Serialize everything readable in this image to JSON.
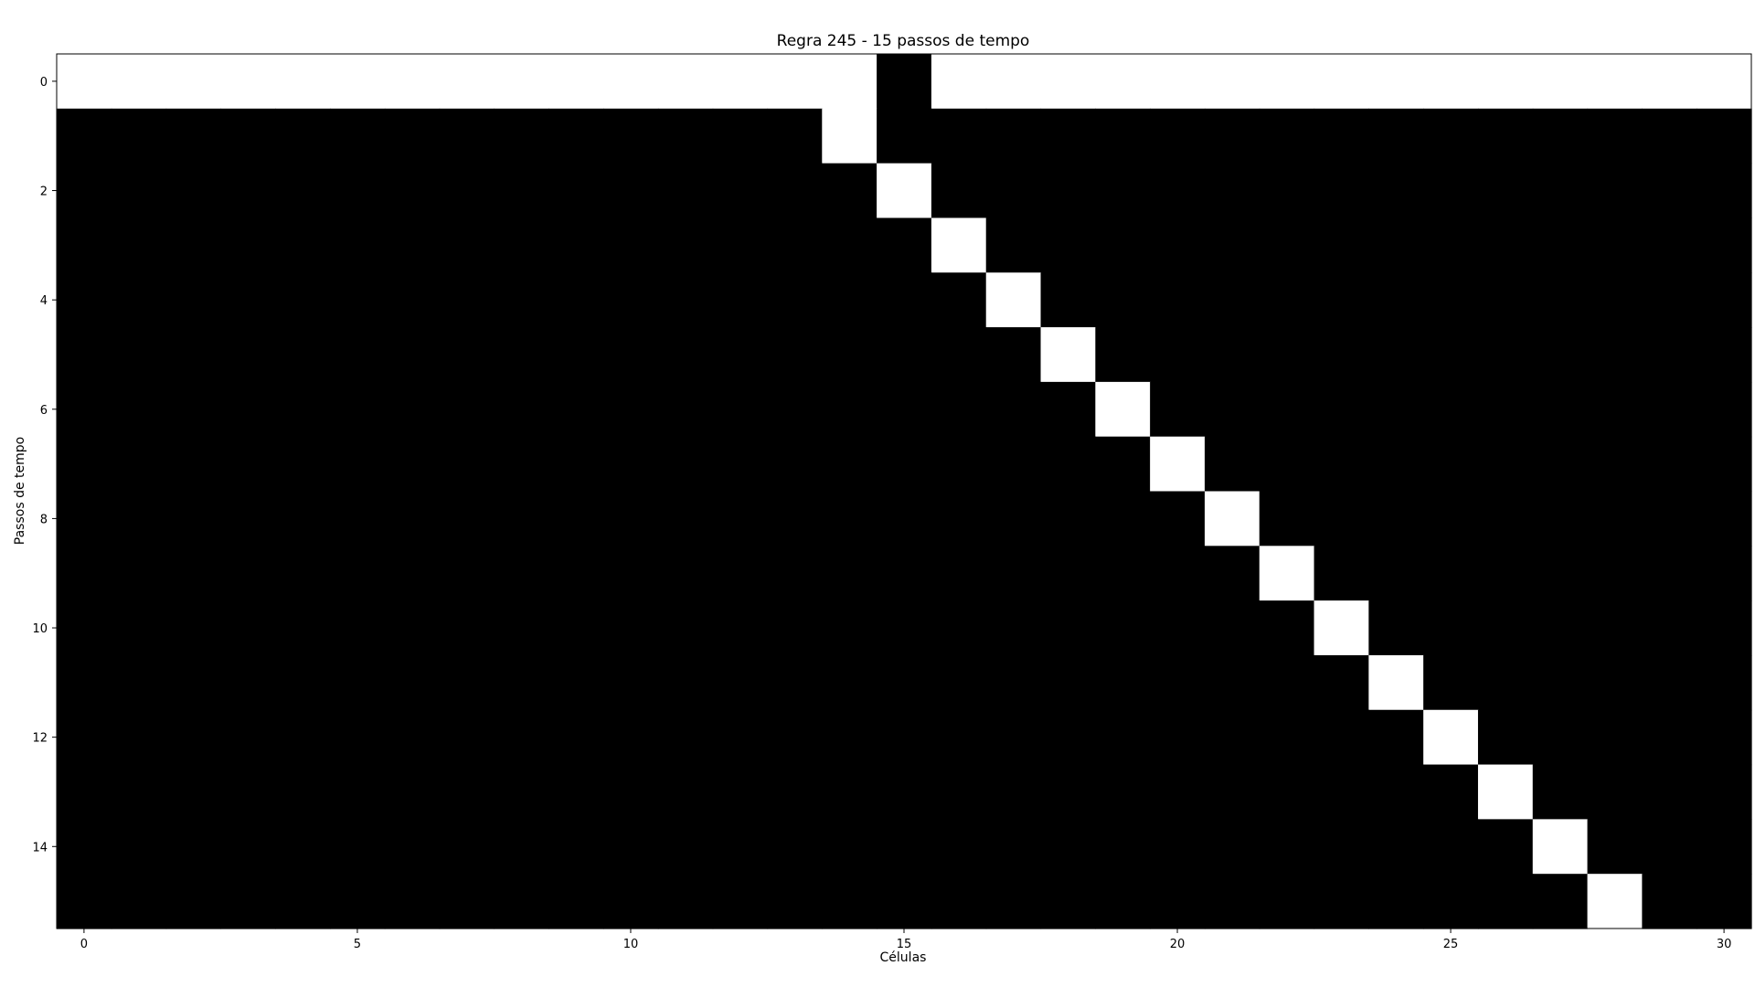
{
  "chart_data": {
    "type": "heatmap",
    "title": "Regra 245 - 15 passos de tempo",
    "xlabel": "Células",
    "ylabel": "Passos de tempo",
    "n_cells": 31,
    "n_steps": 16,
    "x_ticks": [
      0,
      5,
      10,
      15,
      20,
      25,
      30
    ],
    "y_ticks": [
      0,
      2,
      4,
      6,
      8,
      10,
      12,
      14
    ],
    "xlim": [
      -0.5,
      30.5
    ],
    "ylim": [
      15.5,
      -0.5
    ],
    "colormap": {
      "0": "#ffffff",
      "1": "#000000"
    },
    "grid": false,
    "rows": [
      [
        0,
        0,
        0,
        0,
        0,
        0,
        0,
        0,
        0,
        0,
        0,
        0,
        0,
        0,
        0,
        1,
        0,
        0,
        0,
        0,
        0,
        0,
        0,
        0,
        0,
        0,
        0,
        0,
        0,
        0,
        0
      ],
      [
        1,
        1,
        1,
        1,
        1,
        1,
        1,
        1,
        1,
        1,
        1,
        1,
        1,
        1,
        0,
        1,
        1,
        1,
        1,
        1,
        1,
        1,
        1,
        1,
        1,
        1,
        1,
        1,
        1,
        1,
        1
      ],
      [
        1,
        1,
        1,
        1,
        1,
        1,
        1,
        1,
        1,
        1,
        1,
        1,
        1,
        1,
        1,
        0,
        1,
        1,
        1,
        1,
        1,
        1,
        1,
        1,
        1,
        1,
        1,
        1,
        1,
        1,
        1
      ],
      [
        1,
        1,
        1,
        1,
        1,
        1,
        1,
        1,
        1,
        1,
        1,
        1,
        1,
        1,
        1,
        1,
        0,
        1,
        1,
        1,
        1,
        1,
        1,
        1,
        1,
        1,
        1,
        1,
        1,
        1,
        1
      ],
      [
        1,
        1,
        1,
        1,
        1,
        1,
        1,
        1,
        1,
        1,
        1,
        1,
        1,
        1,
        1,
        1,
        1,
        0,
        1,
        1,
        1,
        1,
        1,
        1,
        1,
        1,
        1,
        1,
        1,
        1,
        1
      ],
      [
        1,
        1,
        1,
        1,
        1,
        1,
        1,
        1,
        1,
        1,
        1,
        1,
        1,
        1,
        1,
        1,
        1,
        1,
        0,
        1,
        1,
        1,
        1,
        1,
        1,
        1,
        1,
        1,
        1,
        1,
        1
      ],
      [
        1,
        1,
        1,
        1,
        1,
        1,
        1,
        1,
        1,
        1,
        1,
        1,
        1,
        1,
        1,
        1,
        1,
        1,
        1,
        0,
        1,
        1,
        1,
        1,
        1,
        1,
        1,
        1,
        1,
        1,
        1
      ],
      [
        1,
        1,
        1,
        1,
        1,
        1,
        1,
        1,
        1,
        1,
        1,
        1,
        1,
        1,
        1,
        1,
        1,
        1,
        1,
        1,
        0,
        1,
        1,
        1,
        1,
        1,
        1,
        1,
        1,
        1,
        1
      ],
      [
        1,
        1,
        1,
        1,
        1,
        1,
        1,
        1,
        1,
        1,
        1,
        1,
        1,
        1,
        1,
        1,
        1,
        1,
        1,
        1,
        1,
        0,
        1,
        1,
        1,
        1,
        1,
        1,
        1,
        1,
        1
      ],
      [
        1,
        1,
        1,
        1,
        1,
        1,
        1,
        1,
        1,
        1,
        1,
        1,
        1,
        1,
        1,
        1,
        1,
        1,
        1,
        1,
        1,
        1,
        0,
        1,
        1,
        1,
        1,
        1,
        1,
        1,
        1
      ],
      [
        1,
        1,
        1,
        1,
        1,
        1,
        1,
        1,
        1,
        1,
        1,
        1,
        1,
        1,
        1,
        1,
        1,
        1,
        1,
        1,
        1,
        1,
        1,
        0,
        1,
        1,
        1,
        1,
        1,
        1,
        1
      ],
      [
        1,
        1,
        1,
        1,
        1,
        1,
        1,
        1,
        1,
        1,
        1,
        1,
        1,
        1,
        1,
        1,
        1,
        1,
        1,
        1,
        1,
        1,
        1,
        1,
        0,
        1,
        1,
        1,
        1,
        1,
        1
      ],
      [
        1,
        1,
        1,
        1,
        1,
        1,
        1,
        1,
        1,
        1,
        1,
        1,
        1,
        1,
        1,
        1,
        1,
        1,
        1,
        1,
        1,
        1,
        1,
        1,
        1,
        0,
        1,
        1,
        1,
        1,
        1
      ],
      [
        1,
        1,
        1,
        1,
        1,
        1,
        1,
        1,
        1,
        1,
        1,
        1,
        1,
        1,
        1,
        1,
        1,
        1,
        1,
        1,
        1,
        1,
        1,
        1,
        1,
        1,
        0,
        1,
        1,
        1,
        1
      ],
      [
        1,
        1,
        1,
        1,
        1,
        1,
        1,
        1,
        1,
        1,
        1,
        1,
        1,
        1,
        1,
        1,
        1,
        1,
        1,
        1,
        1,
        1,
        1,
        1,
        1,
        1,
        1,
        0,
        1,
        1,
        1
      ],
      [
        1,
        1,
        1,
        1,
        1,
        1,
        1,
        1,
        1,
        1,
        1,
        1,
        1,
        1,
        1,
        1,
        1,
        1,
        1,
        1,
        1,
        1,
        1,
        1,
        1,
        1,
        1,
        1,
        0,
        1,
        1
      ]
    ]
  }
}
